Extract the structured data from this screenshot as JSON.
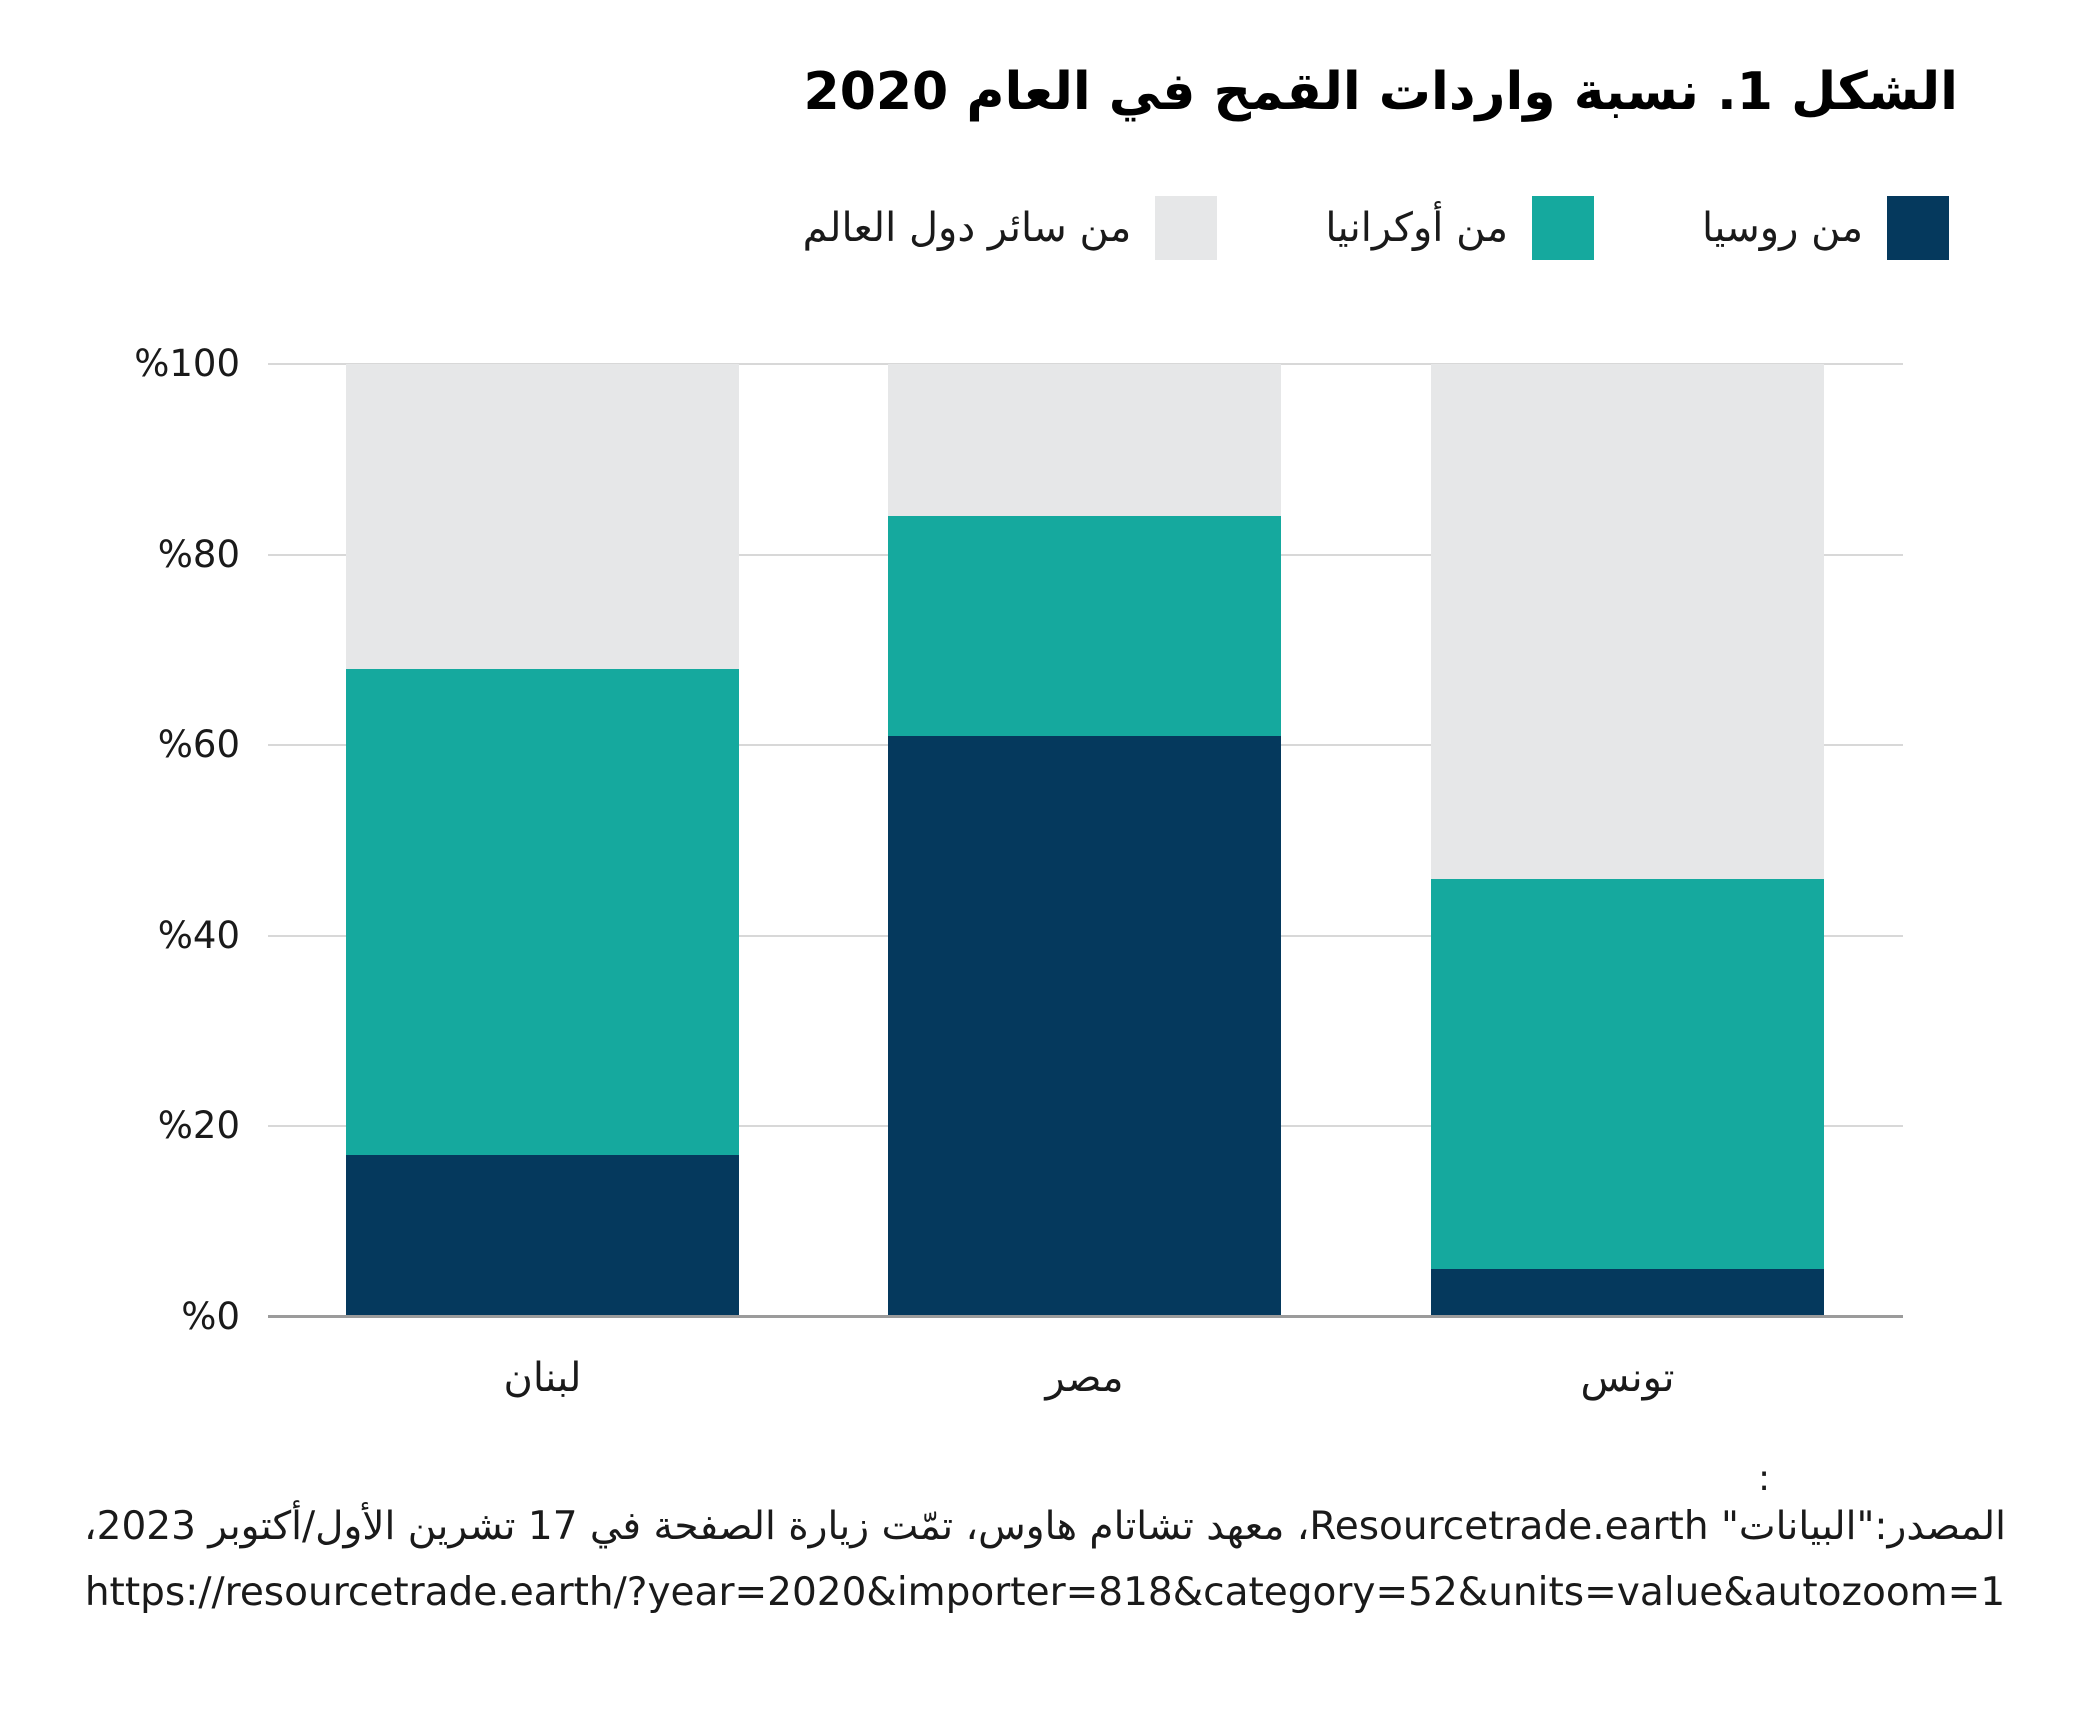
{
  "title": "الشكل 1. نسبة واردات القمح في العام 2020",
  "chart_data": {
    "type": "bar",
    "stacked": true,
    "title": "الشكل 1. نسبة واردات القمح في العام 2020",
    "categories": [
      "لبنان",
      "مصر",
      "تونس"
    ],
    "series": [
      {
        "name": "من روسيا",
        "color": "#05395d",
        "values": [
          17,
          61,
          5
        ]
      },
      {
        "name": "من أوكرانيا",
        "color": "#15a99e",
        "values": [
          51,
          23,
          41
        ]
      },
      {
        "name": "من سائر دول العالم",
        "color": "#e6e7e8",
        "values": [
          32,
          16,
          54
        ]
      }
    ],
    "xlabel": "",
    "ylabel": "",
    "ylim": [
      0,
      100
    ],
    "yticks": [
      "%0",
      "%20",
      "%40",
      "%60",
      "%80",
      "%100"
    ],
    "grid": true,
    "legend_position": "top-right",
    "colors": {
      "gridline": "#d8d8d8",
      "axis_line": "#9b9b9b",
      "background": "#ffffff"
    }
  },
  "caption": {
    "colon": ":",
    "source": "المصدر:\"البيانات\" Resourcetrade.earth، معهد تشاتام هاوس، تمّت زيارة الصفحة في 17 تشرين الأول/أكتوبر 2023،",
    "url": "https://resourcetrade.earth/?year=2020&importer=818&category=52&units=value&autozoom=1"
  }
}
